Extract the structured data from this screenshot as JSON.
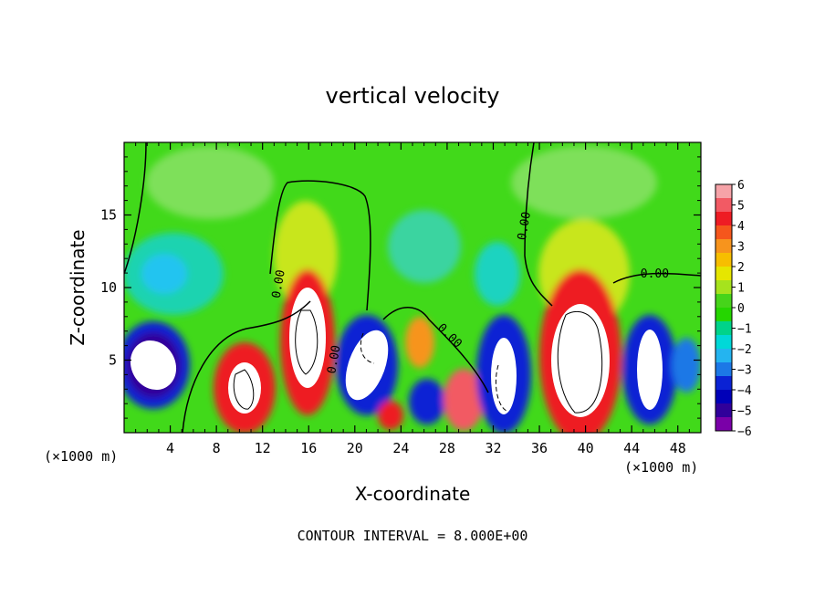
{
  "chart_data": {
    "type": "heatmap",
    "title": "vertical velocity",
    "xlabel": "X-coordinate",
    "ylabel": "Z-coordinate",
    "x_unit_left": "(×1000 m)",
    "x_unit_right": "(×1000 m)",
    "xlim": [
      0,
      50
    ],
    "ylim": [
      0,
      20
    ],
    "x_ticks": [
      4,
      8,
      12,
      16,
      20,
      24,
      28,
      32,
      36,
      40,
      44,
      48
    ],
    "y_ticks": [
      5,
      10,
      15
    ],
    "footer": "CONTOUR INTERVAL = 8.000E+00",
    "contour_labels": [
      {
        "text": "0.00",
        "x": 13.7,
        "z": 10.2,
        "angle": -80
      },
      {
        "text": "0.00",
        "x": 18.5,
        "z": 5.0,
        "angle": -80
      },
      {
        "text": "0.00",
        "x": 28.0,
        "z": 6.5,
        "angle": 45
      },
      {
        "text": "0.00",
        "x": 35.0,
        "z": 14.2,
        "angle": -80
      },
      {
        "text": "0.00",
        "x": 46.0,
        "z": 10.7,
        "angle": 0
      }
    ],
    "colorbar": {
      "min": -6,
      "max": 6,
      "tick_labels": [
        "6",
        "5",
        "4",
        "3",
        "2",
        "1",
        "0",
        "−1",
        "−2",
        "−3",
        "−4",
        "−5",
        "−6"
      ],
      "colors": [
        "#f6a3a8",
        "#f25a64",
        "#ee1c24",
        "#f5561c",
        "#f7941d",
        "#f7be00",
        "#e6e600",
        "#a6e31d",
        "#46d41a",
        "#25d600",
        "#00d38a",
        "#00d8d8",
        "#24b4f0",
        "#1c78e6",
        "#0a22d4",
        "#0000b8",
        "#30009a",
        "#7a00a8"
      ]
    }
  }
}
